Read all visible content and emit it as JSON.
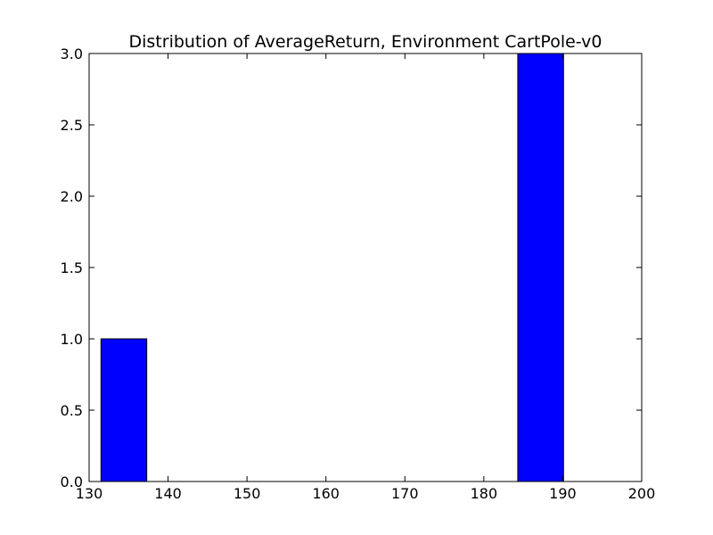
{
  "chart_data": {
    "type": "bar",
    "title": "Distribution of AverageReturn, Environment CartPole-v0",
    "xlabel": "",
    "ylabel": "",
    "xlim": [
      130,
      200
    ],
    "ylim": [
      0,
      3.0
    ],
    "x_ticks": [
      "130",
      "140",
      "150",
      "160",
      "170",
      "180",
      "190",
      "200"
    ],
    "x_tick_values": [
      130,
      140,
      150,
      160,
      170,
      180,
      190,
      200
    ],
    "y_ticks": [
      "0.0",
      "0.5",
      "1.0",
      "1.5",
      "2.0",
      "2.5",
      "3.0"
    ],
    "y_tick_values": [
      0,
      0.5,
      1.0,
      1.5,
      2.0,
      2.5,
      3.0
    ],
    "grid": false,
    "bars": [
      {
        "x_start": 131.5,
        "x_end": 137.3,
        "value": 1
      },
      {
        "x_start": 184.3,
        "x_end": 190.1,
        "value": 3
      }
    ],
    "bar_color": "#0000ff",
    "edge_color": "#000000"
  }
}
